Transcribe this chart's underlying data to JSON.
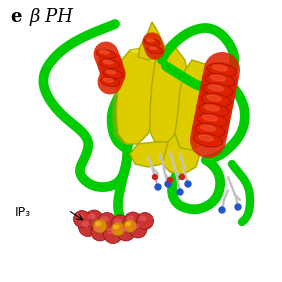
{
  "title_letter": "e",
  "title_text": "β PH",
  "label_ip3": "IP₃",
  "bg_color": "#ffffff",
  "fig_width": 2.82,
  "fig_height": 2.82,
  "dpi": 100,
  "colors": {
    "green": "#00cc00",
    "green_dark": "#009900",
    "yellow": "#ddcc00",
    "yellow_light": "#eeee44",
    "yellow_dark": "#aaaa00",
    "red": "#dd2200",
    "red_dark": "#aa1100",
    "sphere_red": "#cc3333",
    "sphere_orange": "#dd8800",
    "sphere_highlight": "#ee8888",
    "atom_blue": "#2255cc",
    "atom_red": "#cc2222",
    "stick_gray": "#cccccc",
    "stick_dark": "#888888",
    "black": "#000000"
  }
}
